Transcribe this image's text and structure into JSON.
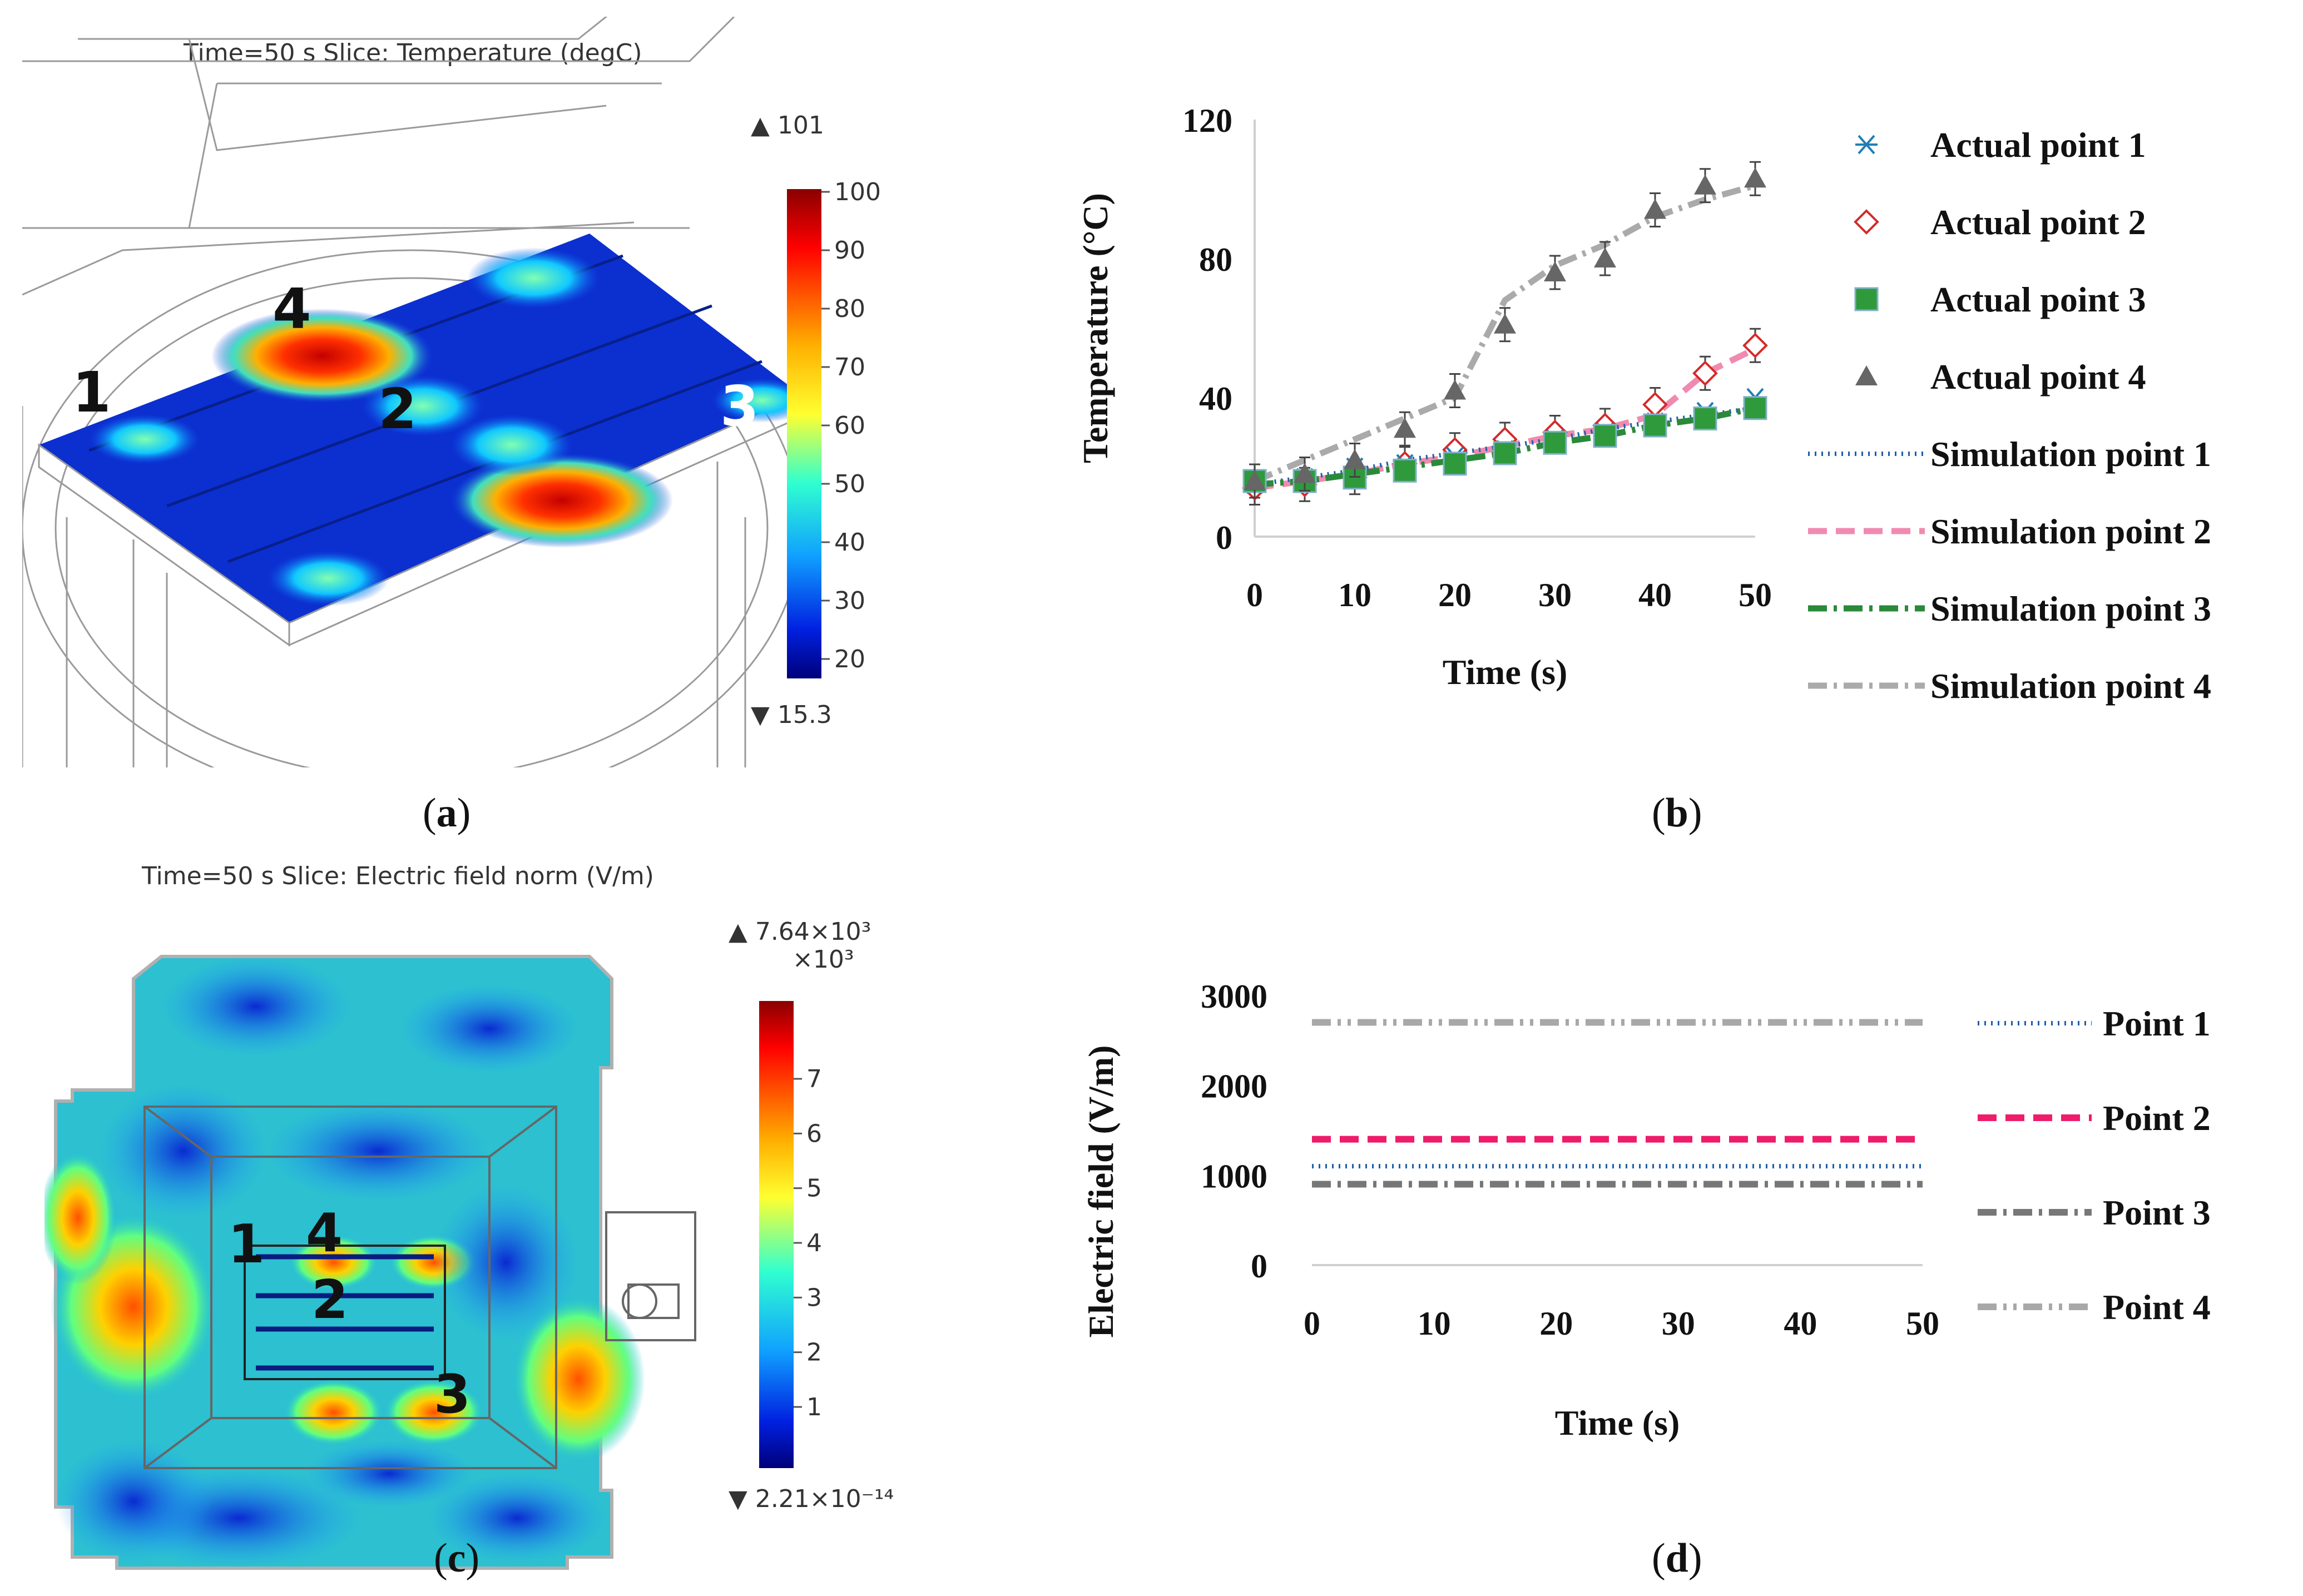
{
  "panels": {
    "a": {
      "caption_open": "(",
      "caption_letter": "a",
      "caption_close": ")",
      "title": "Time=50 s   Slice: Temperature (degC)",
      "colorbar": {
        "max_label": "▲ 101",
        "min_label": "▼ 15.3",
        "ticks": [
          "100",
          "90",
          "80",
          "70",
          "60",
          "50",
          "40",
          "30",
          "20"
        ]
      },
      "point_labels": [
        "1",
        "2",
        "3",
        "4"
      ]
    },
    "c": {
      "caption_open": "(",
      "caption_letter": "c",
      "caption_close": ")",
      "title": "Time=50 s   Slice: Electric field norm (V/m)",
      "colorbar": {
        "max_label": "▲ 7.64×10³",
        "scale_label": "×10³",
        "min_label": "▼ 2.21×10⁻¹⁴",
        "ticks": [
          "7",
          "6",
          "5",
          "4",
          "3",
          "2",
          "1"
        ]
      },
      "point_labels": [
        "1",
        "2",
        "3",
        "4"
      ]
    },
    "b": {
      "caption_open": "(",
      "caption_letter": "b",
      "caption_close": ")"
    },
    "d": {
      "caption_open": "(",
      "caption_letter": "d",
      "caption_close": ")"
    }
  },
  "chart_data": [
    {
      "id": "b",
      "type": "line",
      "title": "",
      "xlabel": "Time (s)",
      "ylabel": "Temperature (°C)",
      "xlim": [
        0,
        50
      ],
      "ylim": [
        0,
        120
      ],
      "xticks": [
        0,
        10,
        20,
        30,
        40,
        50
      ],
      "yticks": [
        0,
        40,
        80,
        120
      ],
      "x": [
        0,
        5,
        10,
        15,
        20,
        25,
        30,
        35,
        40,
        45,
        50
      ],
      "series": [
        {
          "name": "Actual point 1",
          "kind": "marker",
          "marker": "star",
          "color": "#1f7fb5",
          "values": [
            15,
            17,
            20,
            21,
            23,
            25,
            28,
            30,
            33,
            36,
            40
          ]
        },
        {
          "name": "Actual point 2",
          "kind": "marker",
          "marker": "diamond",
          "color": "#d42a2a",
          "values": [
            14,
            15,
            17,
            21,
            25,
            28,
            30,
            32,
            38,
            47,
            55
          ]
        },
        {
          "name": "Actual point 3",
          "kind": "marker",
          "marker": "square",
          "color": "#2f9a3c",
          "values": [
            16,
            16,
            17,
            19,
            21,
            24,
            27,
            29,
            32,
            34,
            37
          ]
        },
        {
          "name": "Actual point 4",
          "kind": "marker",
          "marker": "triangle",
          "color": "#666666",
          "values": [
            16,
            18,
            22,
            31,
            42,
            61,
            76,
            80,
            94,
            101,
            103
          ]
        },
        {
          "name": "Simulation point 1",
          "kind": "line",
          "dash": "dotted",
          "color": "#1f5fa8",
          "values": [
            15,
            17,
            19,
            22,
            24,
            26,
            28,
            31,
            33,
            35,
            37
          ]
        },
        {
          "name": "Simulation point 2",
          "kind": "line",
          "dash": "dashed",
          "color": "#f08ab0",
          "values": [
            14,
            16,
            18,
            21,
            23,
            26,
            29,
            31,
            35,
            47,
            54
          ]
        },
        {
          "name": "Simulation point 3",
          "kind": "line",
          "dash": "dashdot",
          "color": "#2a8a3a",
          "values": [
            15,
            16,
            18,
            20,
            22,
            24,
            27,
            29,
            32,
            34,
            37
          ]
        },
        {
          "name": "Simulation point 4",
          "kind": "line",
          "dash": "dashdot",
          "color": "#aaaaaa",
          "values": [
            16,
            22,
            28,
            34,
            40,
            68,
            78,
            84,
            92,
            97,
            101
          ]
        }
      ]
    },
    {
      "id": "d",
      "type": "line",
      "title": "",
      "xlabel": "Time (s)",
      "ylabel": "Electric field (V/m)",
      "xlim": [
        0,
        50
      ],
      "ylim": [
        0,
        3000
      ],
      "xticks": [
        0,
        10,
        20,
        30,
        40,
        50
      ],
      "yticks": [
        0,
        1000,
        2000,
        3000
      ],
      "x": [
        0,
        50
      ],
      "series": [
        {
          "name": "Point 1",
          "dash": "dotted",
          "color": "#1f5fa8",
          "values": [
            1100,
            1100
          ]
        },
        {
          "name": "Point 2",
          "dash": "dashed",
          "color": "#ee1c6a",
          "values": [
            1400,
            1400
          ]
        },
        {
          "name": "Point 3",
          "dash": "dashdot",
          "color": "#777777",
          "values": [
            900,
            900
          ]
        },
        {
          "name": "Point 4",
          "dash": "dashdotdot",
          "color": "#a8a8a8",
          "values": [
            2700,
            2700
          ]
        }
      ]
    }
  ]
}
